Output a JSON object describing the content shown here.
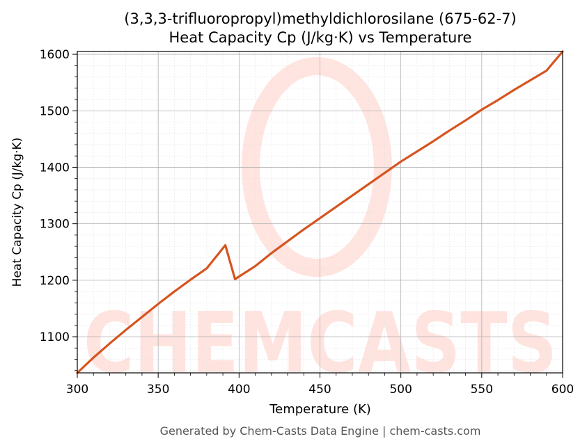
{
  "chart_data": {
    "type": "line",
    "title_line1": "(3,3,3-trifluoropropyl)methyldichlorosilane (675-62-7)",
    "title_line2": "Heat Capacity Cp (J/kg·K) vs Temperature",
    "xlabel": "Temperature (K)",
    "ylabel": "Heat Capacity Cp (J/kg·K)",
    "xlim": [
      300,
      600
    ],
    "ylim": [
      1036,
      1605
    ],
    "xticks": [
      300,
      350,
      400,
      450,
      500,
      550,
      600
    ],
    "yticks": [
      1100,
      1200,
      1300,
      1400,
      1500,
      1600
    ],
    "grid": true,
    "legend": "none",
    "series": [
      {
        "color": "#d6541f",
        "x": [
          300,
          310,
          320,
          330,
          340,
          350,
          360,
          370,
          380,
          391.5,
          397.5,
          410,
          420,
          430,
          440,
          450,
          460,
          470,
          480,
          490,
          500,
          510,
          520,
          530,
          540,
          550,
          560,
          570,
          580,
          590,
          600
        ],
        "y": [
          1036,
          1063,
          1088,
          1112,
          1135,
          1158,
          1180,
          1201,
          1221,
          1262,
          1202,
          1225,
          1248,
          1269,
          1290,
          1310,
          1330,
          1350,
          1370,
          1390,
          1410,
          1428,
          1446,
          1465,
          1483,
          1502,
          1519,
          1537,
          1554,
          1571,
          1605
        ]
      }
    ],
    "watermark": "CHEMCASTS",
    "footer": "Generated by Chem-Casts Data Engine | chem-casts.com"
  }
}
